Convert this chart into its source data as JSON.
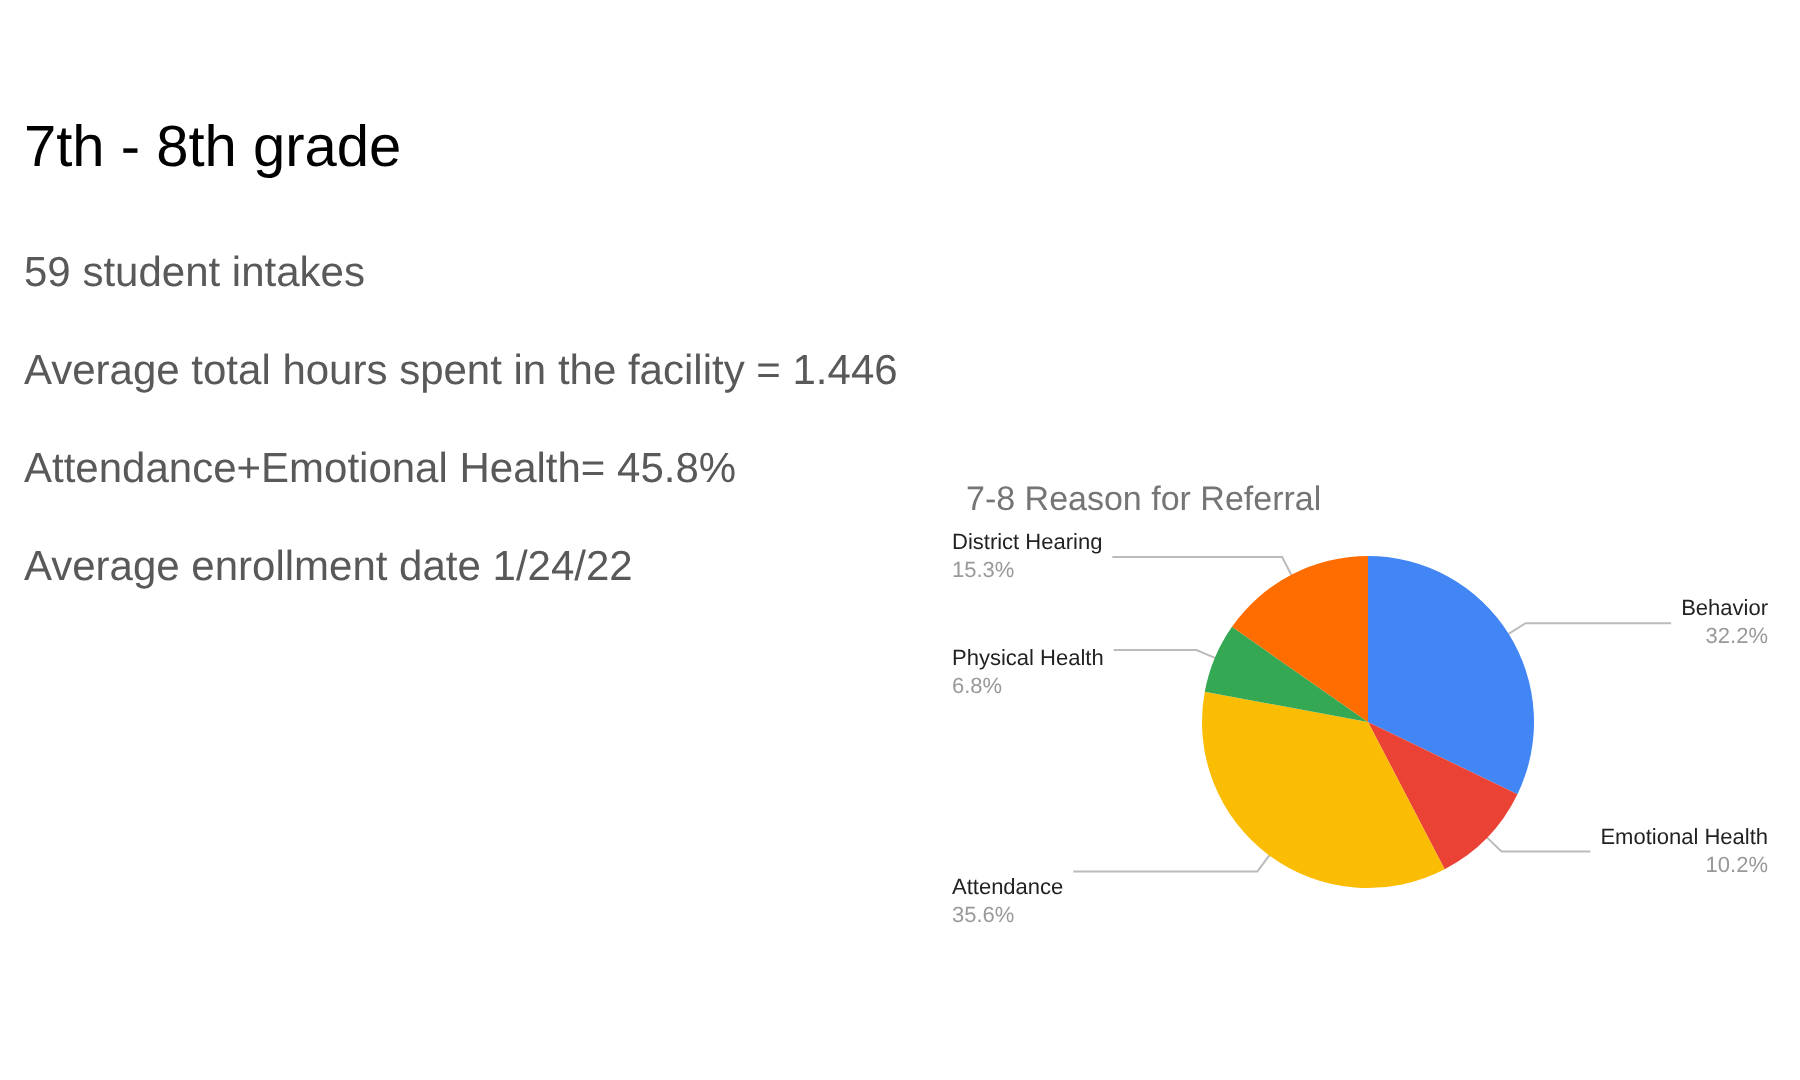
{
  "chart_data": [
    {
      "type": "other",
      "title": "7th - 8th grade",
      "annotations": [
        "59 student intakes",
        "Average total hours spent in the facility = 1.446",
        "Attendance+Emotional Health= 45.8%",
        "Average enrollment date 1/24/22"
      ]
    },
    {
      "type": "pie",
      "title": "7-8 Reason for Referral",
      "categories": [
        "Behavior",
        "Emotional Health",
        "Attendance",
        "Physical Health",
        "District Hearing"
      ],
      "values": [
        32.2,
        10.2,
        35.6,
        6.8,
        15.3
      ],
      "colors": [
        "#4285f4",
        "#ea4335",
        "#fbbc04",
        "#34a853",
        "#ff6d01"
      ],
      "value_labels": [
        "32.2%",
        "10.2%",
        "35.6%",
        "6.8%",
        "15.3%"
      ]
    }
  ]
}
